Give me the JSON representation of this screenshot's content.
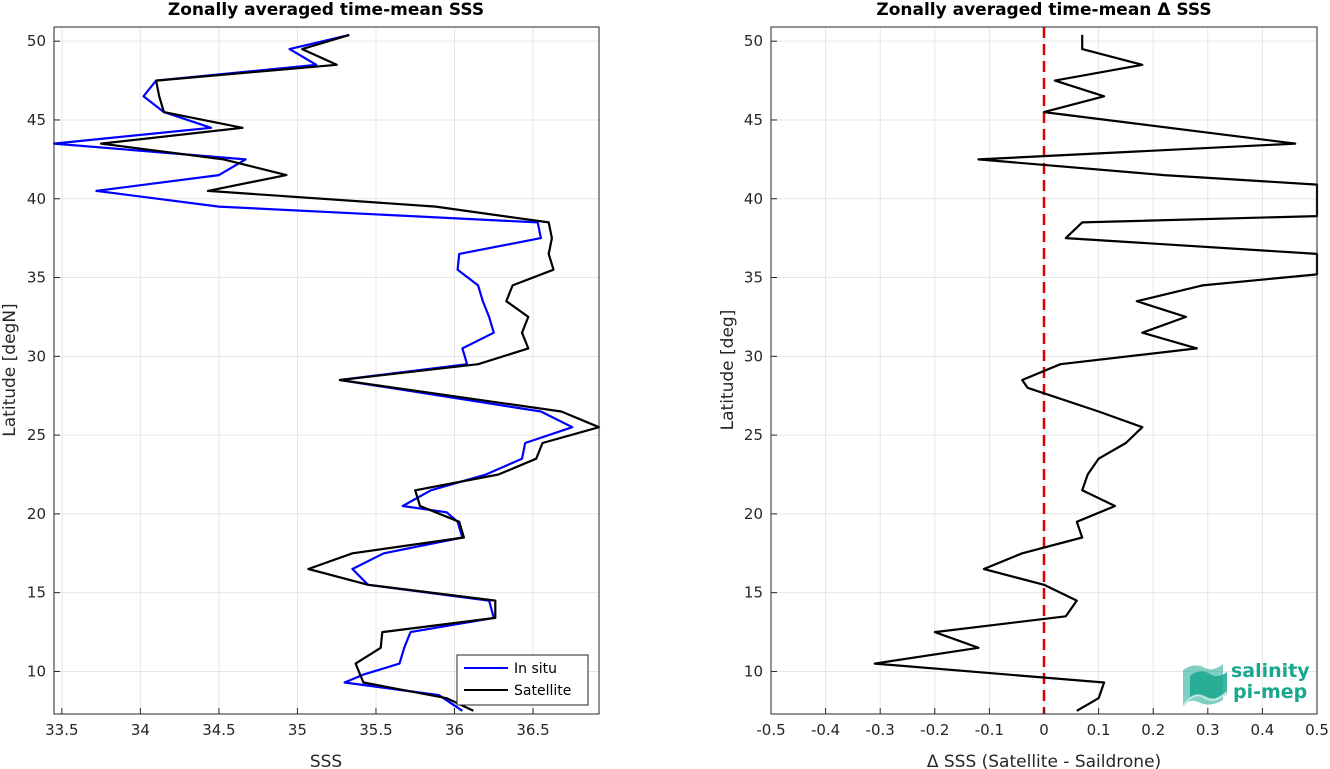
{
  "chart_data": [
    {
      "type": "line",
      "title": "Zonally averaged time-mean SSS",
      "xlabel": "SSS",
      "ylabel": "Latitude [degN]",
      "xlim": [
        33.45,
        36.92
      ],
      "ylim": [
        7.3,
        50.9
      ],
      "xticks": [
        33.5,
        34,
        34.5,
        35,
        35.5,
        36,
        36.5
      ],
      "yticks": [
        10,
        15,
        20,
        25,
        30,
        35,
        40,
        45,
        50
      ],
      "grid": true,
      "legend": "bottom-right",
      "series": [
        {
          "name": "In situ",
          "color": "#0000ff",
          "points": [
            [
              36.05,
              7.5
            ],
            [
              35.9,
              8.5
            ],
            [
              35.3,
              9.3
            ],
            [
              35.42,
              9.8
            ],
            [
              35.65,
              10.5
            ],
            [
              35.68,
              11.5
            ],
            [
              35.72,
              12.5
            ],
            [
              36.25,
              13.4
            ],
            [
              36.22,
              14.5
            ],
            [
              35.45,
              15.5
            ],
            [
              35.35,
              16.5
            ],
            [
              35.55,
              17.5
            ],
            [
              36.05,
              18.5
            ],
            [
              36.02,
              19.5
            ],
            [
              35.95,
              20.1
            ],
            [
              35.67,
              20.5
            ],
            [
              35.85,
              21.5
            ],
            [
              36.2,
              22.5
            ],
            [
              36.43,
              23.5
            ],
            [
              36.45,
              24.5
            ],
            [
              36.75,
              25.5
            ],
            [
              36.55,
              26.5
            ],
            [
              35.27,
              28.5
            ],
            [
              36.08,
              29.5
            ],
            [
              36.05,
              30.5
            ],
            [
              36.25,
              31.5
            ],
            [
              36.22,
              32.5
            ],
            [
              36.18,
              33.5
            ],
            [
              36.15,
              34.5
            ],
            [
              36.02,
              35.5
            ],
            [
              36.03,
              36.5
            ],
            [
              36.55,
              37.5
            ],
            [
              36.53,
              38.5
            ],
            [
              34.5,
              39.5
            ],
            [
              33.72,
              40.5
            ],
            [
              34.5,
              41.5
            ],
            [
              34.67,
              42.5
            ],
            [
              33.45,
              43.5
            ],
            [
              34.45,
              44.5
            ],
            [
              34.15,
              45.5
            ],
            [
              34.02,
              46.5
            ],
            [
              34.1,
              47.5
            ],
            [
              35.12,
              48.5
            ],
            [
              34.95,
              49.5
            ],
            [
              35.33,
              50.4
            ]
          ]
        },
        {
          "name": "Satellite",
          "color": "#000000",
          "points": [
            [
              36.12,
              7.5
            ],
            [
              35.95,
              8.3
            ],
            [
              35.42,
              9.3
            ],
            [
              35.37,
              10.5
            ],
            [
              35.53,
              11.5
            ],
            [
              35.54,
              12.5
            ],
            [
              36.26,
              13.4
            ],
            [
              36.26,
              14.5
            ],
            [
              35.45,
              15.5
            ],
            [
              35.07,
              16.5
            ],
            [
              35.35,
              17.5
            ],
            [
              36.06,
              18.5
            ],
            [
              36.03,
              19.5
            ],
            [
              35.78,
              20.5
            ],
            [
              35.75,
              21.5
            ],
            [
              36.28,
              22.5
            ],
            [
              36.52,
              23.5
            ],
            [
              36.56,
              24.5
            ],
            [
              36.92,
              25.5
            ],
            [
              36.68,
              26.5
            ],
            [
              35.27,
              28.5
            ],
            [
              36.15,
              29.5
            ],
            [
              36.47,
              30.5
            ],
            [
              36.43,
              31.5
            ],
            [
              36.47,
              32.5
            ],
            [
              36.33,
              33.5
            ],
            [
              36.37,
              34.5
            ],
            [
              36.63,
              35.5
            ],
            [
              36.6,
              36.5
            ],
            [
              36.62,
              37.5
            ],
            [
              36.6,
              38.5
            ],
            [
              35.88,
              39.5
            ],
            [
              34.43,
              40.5
            ],
            [
              34.93,
              41.5
            ],
            [
              34.53,
              42.5
            ],
            [
              33.75,
              43.5
            ],
            [
              34.65,
              44.5
            ],
            [
              34.15,
              45.5
            ],
            [
              34.12,
              46.5
            ],
            [
              34.1,
              47.5
            ],
            [
              35.25,
              48.5
            ],
            [
              35.03,
              49.5
            ],
            [
              35.33,
              50.4
            ]
          ]
        }
      ]
    },
    {
      "type": "line",
      "title": "Zonally averaged time-mean Δ SSS",
      "xlabel": "Δ SSS (Satellite - Saildrone)",
      "ylabel": "Latitude [deg]",
      "xlim": [
        -0.5,
        0.5
      ],
      "ylim": [
        7.3,
        50.9
      ],
      "xticks": [
        -0.5,
        -0.4,
        -0.3,
        -0.2,
        -0.1,
        0,
        0.1,
        0.2,
        0.3,
        0.4,
        0.5
      ],
      "yticks": [
        10,
        15,
        20,
        25,
        30,
        35,
        40,
        45,
        50
      ],
      "grid": true,
      "reference_line": {
        "x": 0,
        "color": "#dd0000",
        "style": "dashed"
      },
      "series": [
        {
          "color": "#000000",
          "points": [
            [
              0.06,
              7.5
            ],
            [
              0.1,
              8.3
            ],
            [
              0.11,
              9.3
            ],
            [
              -0.31,
              10.5
            ],
            [
              -0.12,
              11.5
            ],
            [
              -0.2,
              12.5
            ],
            [
              0.04,
              13.5
            ],
            [
              0.06,
              14.5
            ],
            [
              0.0,
              15.5
            ],
            [
              -0.11,
              16.5
            ],
            [
              -0.04,
              17.5
            ],
            [
              0.07,
              18.5
            ],
            [
              0.06,
              19.5
            ],
            [
              0.13,
              20.5
            ],
            [
              0.07,
              21.5
            ],
            [
              0.08,
              22.5
            ],
            [
              0.1,
              23.5
            ],
            [
              0.15,
              24.5
            ],
            [
              0.18,
              25.5
            ],
            [
              0.1,
              26.5
            ],
            [
              -0.03,
              28.0
            ],
            [
              -0.04,
              28.5
            ],
            [
              0.03,
              29.5
            ],
            [
              0.28,
              30.5
            ],
            [
              0.18,
              31.5
            ],
            [
              0.26,
              32.5
            ],
            [
              0.17,
              33.5
            ],
            [
              0.29,
              34.5
            ],
            [
              0.5,
              35.2
            ],
            [
              0.5,
              36.5
            ],
            [
              0.04,
              37.5
            ],
            [
              0.07,
              38.5
            ],
            [
              0.5,
              38.9
            ],
            [
              0.5,
              40.9
            ],
            [
              0.22,
              41.5
            ],
            [
              -0.12,
              42.5
            ],
            [
              0.46,
              43.5
            ],
            [
              0.0,
              45.5
            ],
            [
              0.11,
              46.5
            ],
            [
              0.02,
              47.5
            ],
            [
              0.18,
              48.5
            ],
            [
              0.07,
              49.5
            ],
            [
              0.07,
              50.4
            ]
          ]
        }
      ]
    }
  ],
  "legend": {
    "items": [
      "In situ",
      "Satellite"
    ]
  },
  "logo": {
    "line1": "salinity",
    "line2": "pi-mep"
  },
  "colors": {
    "in_situ": "#0000ff",
    "satellite": "#000000",
    "zero_line": "#dd0000",
    "logo": "#1aa78f"
  }
}
